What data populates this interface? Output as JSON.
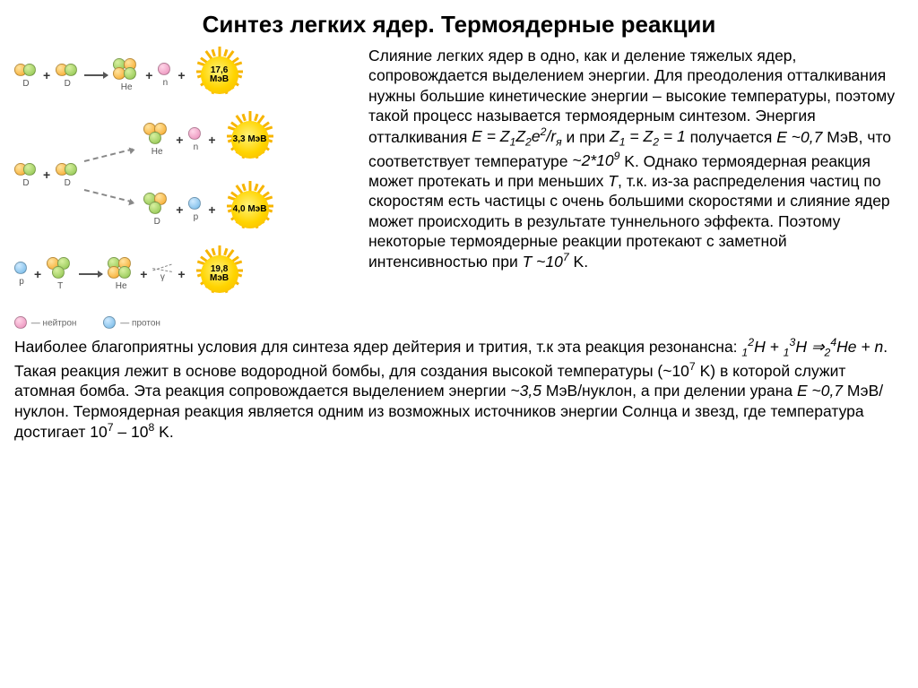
{
  "title": "Синтез легких ядер. Термоядерные реакции",
  "colors": {
    "sun_core": "#ffd400",
    "sun_edge": "#f7b500",
    "green": "#8bc34a",
    "orange": "#f6a623",
    "blue": "#6fb6e6",
    "pink": "#e98bb8"
  },
  "reactions": [
    {
      "energy": "17,6 МэВ",
      "left": [
        "D",
        "D"
      ],
      "right": [
        "He4",
        "n"
      ],
      "label_right": "He"
    },
    {
      "energy": "3,3 МэВ",
      "branch_top_right": [
        "He3",
        "n"
      ],
      "branch_top_label": "He"
    },
    {
      "energy": "4,0 МэВ",
      "left": [
        "D",
        "D"
      ],
      "branch_bottom_right": [
        "T",
        "p"
      ],
      "branch_bottom_label": "D"
    },
    {
      "energy": "19,8 МэВ",
      "left": [
        "p",
        "He3_alt"
      ],
      "right": [
        "He4",
        "gamma"
      ],
      "label_right": "He"
    }
  ],
  "legend": {
    "neutron": "— нейтрон",
    "proton": "— протон"
  },
  "body_right_html": "Слияние легких ядер в одно, как и деление тяжелых ядер, сопровождается выделением энергии. Для преодоления отталкивания нужны большие кинетические энергии – высокие температуры, поэтому такой процесс называется термоядерным синтезом. Энергия отталкивания <span class=\"formula\">E = Z<sub>1</sub>Z<sub>2</sub>e<sup>2</sup>/r<sub>я</sub></span> и при <span class=\"formula\">Z<sub>1</sub> = Z<sub>2</sub> = 1</span> получается <span class=\"formula\">E ~0,7</span> МэВ, что соответствует температуре <span class=\"formula\">~2*10<sup>9</sup></span> K. Однако термоядерная реакция может протекать и при меньших <span class=\"formula\">T</span>, т.к. из-за распределения частиц по скоростям есть частицы с очень большими скоростями и слияние ядер может происходить в результате туннельного эффекта. Поэтому некоторые термоядерные реакции протекают с заметной интенсивностью при <span class=\"formula\">T ~10<sup>7</sup></span> K.",
  "body_lower_html": "Наиболее благоприятны условия для синтеза ядер дейтерия и трития, т.к эта реакция резонансна: <span class=\"formula\"><sub>1</sub><sup>2</sup>H + <sub>1</sub><sup>3</sup>H ⇒<sub>2</sub><sup>4</sup>He + n</span>. Такая реакция лежит в основе водородной бомбы, для создания высокой температуры (~10<sup>7</sup> K) в которой служит атомная бомба. Эта реакция сопровождается выделением энергии <span class=\"formula\">~3,5</span> МэВ/нуклон, а при делении урана <span class=\"formula\">E ~0,7</span> МэВ/нуклон. Термоядерная реакция является одним из возможных источников энергии Солнца и звезд, где температура достигает 10<sup>7</sup> – 10<sup>8</sup> K."
}
